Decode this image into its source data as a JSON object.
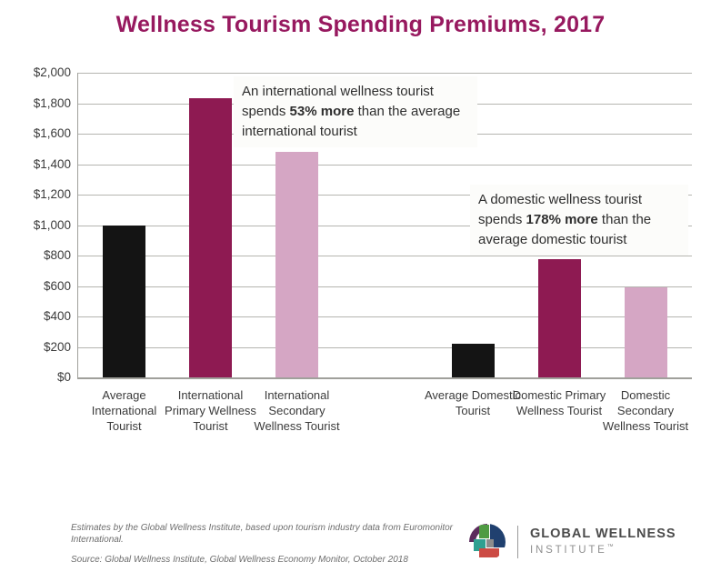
{
  "title": "Wellness Tourism Spending Premiums, 2017",
  "chart_data": {
    "type": "bar",
    "title": "Wellness Tourism Spending Premiums, 2017",
    "categories": [
      "Average International Tourist",
      "International Primary Wellness Tourist",
      "International Secondary Wellness Tourist",
      "Average Domestic Tourist",
      "Domestic Primary Wellness Tourist",
      "Domestic Secondary Wellness Tourist"
    ],
    "values": [
      1000,
      1830,
      1480,
      220,
      775,
      590
    ],
    "bar_colors": [
      "#141414",
      "#8E1A52",
      "#D5A6C4",
      "#141414",
      "#8E1A52",
      "#D5A6C4"
    ],
    "xlabel": "",
    "ylabel": "",
    "ylim": [
      0,
      2000
    ],
    "ytick_step": 200,
    "ytick_labels": [
      "$2,000",
      "$1,800",
      "$1,600",
      "$1,400",
      "$1,200",
      "$1,000",
      "$800",
      "$600",
      "$400",
      "$200",
      "$0"
    ],
    "grid": true,
    "legend": false,
    "annotations": [
      {
        "pre": "An international wellness tourist spends ",
        "bold": "53% more",
        "post": " than the average international tourist"
      },
      {
        "pre": "A domestic wellness tourist spends ",
        "bold": "178% more",
        "post": " than the average domestic tourist"
      }
    ]
  },
  "footer": {
    "estimates": "Estimates by the Global Wellness Institute, based upon tourism industry data from Euromonitor International.",
    "source": "Source: Global Wellness Institute, Global Wellness Economy Monitor, October 2018"
  },
  "logo": {
    "name": "GLOBAL WELLNESS",
    "subname": "INSTITUTE",
    "tm": "™"
  },
  "colors": {
    "title": "#97195F",
    "bar_black": "#141414",
    "bar_magenta": "#8E1A52",
    "bar_pink": "#D5A6C4",
    "gridline": "#B5B5B0",
    "axis": "#A0A09B",
    "annotation_bg": "#FCFCFA",
    "label_text": "#3B3B3B",
    "footer_text": "#6E6E6E",
    "logo_purple": "#5C2B5D",
    "logo_green": "#4F9B43",
    "logo_navy": "#20406F",
    "logo_teal": "#2FA091",
    "logo_gray": "#8C8C8C",
    "logo_red": "#CC4B44"
  }
}
